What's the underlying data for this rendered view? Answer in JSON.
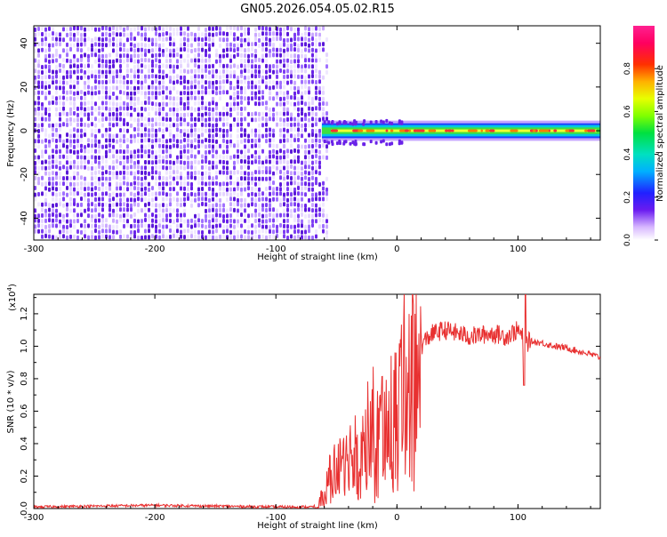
{
  "title": "GN05.2026.054.05.02.R15",
  "colors": {
    "signal_line": "#e83030",
    "noise_purple": "#7a22e6",
    "axis": "#000000",
    "background": "#ffffff"
  },
  "chart_data": [
    {
      "type": "heatmap",
      "title": "GN05.2026.054.05.02.R15",
      "xlabel": "Height of straight line (km)",
      "ylabel": "Frequency (Hz)",
      "xlim": [
        -300,
        168
      ],
      "ylim": [
        -50,
        48
      ],
      "x_ticks": [
        -300,
        -200,
        -100,
        0,
        100
      ],
      "x_tick_labels": [
        "-300",
        "-200",
        "-100",
        "0",
        "100"
      ],
      "y_ticks": [
        -40,
        -20,
        0,
        20,
        40
      ],
      "y_tick_labels": [
        "-40",
        "-20",
        "0",
        "20",
        "40"
      ],
      "noise_region_x": [
        -300,
        -60
      ],
      "signal_band": {
        "x": [
          -62,
          168
        ],
        "center_hz": 0,
        "half_width_hz": 3
      },
      "colorbar": {
        "label": "Normalized spectral amplitude",
        "range": [
          0,
          1
        ],
        "ticks": [
          0.0,
          0.2,
          0.4,
          0.6,
          0.8
        ],
        "tick_labels": [
          "0.0",
          "0.2",
          "0.4",
          "0.6",
          "0.8"
        ]
      }
    },
    {
      "type": "line",
      "xlabel": "Height of straight line (km)",
      "ylabel": "SNR (10 * v/v)",
      "scale_label": "(x10",
      "scale_exponent": "4",
      "scale_suffix": ")",
      "xlim": [
        -300,
        168
      ],
      "ylim": [
        0,
        1.32
      ],
      "x_ticks": [
        -300,
        -200,
        -100,
        0,
        100
      ],
      "x_tick_labels": [
        "-300",
        "-200",
        "-100",
        "0",
        "100"
      ],
      "y_ticks": [
        0.0,
        0.2,
        0.4,
        0.6,
        0.8,
        1.0,
        1.2
      ],
      "y_tick_labels": [
        "0.0",
        "0.2",
        "0.4",
        "0.6",
        "0.8",
        "1.0",
        "1.2"
      ],
      "series": [
        {
          "name": "SNR",
          "x": [
            -300,
            -250,
            -200,
            -150,
            -100,
            -70,
            -65,
            -60,
            -55,
            -50,
            -45,
            -40,
            -35,
            -30,
            -25,
            -20,
            -15,
            -10,
            -5,
            0,
            5,
            10,
            15,
            20,
            25,
            30,
            40,
            50,
            60,
            70,
            80,
            90,
            100,
            104,
            105,
            106,
            107,
            110,
            120,
            130,
            140,
            150,
            160,
            168
          ],
          "y": [
            0.01,
            0.015,
            0.02,
            0.015,
            0.01,
            0.01,
            0.02,
            0.06,
            0.22,
            0.28,
            0.24,
            0.33,
            0.42,
            0.38,
            0.46,
            0.55,
            0.5,
            0.62,
            0.6,
            0.68,
            0.82,
            0.9,
            0.95,
            1.0,
            1.05,
            1.08,
            1.1,
            1.08,
            1.06,
            1.07,
            1.08,
            1.06,
            1.1,
            1.05,
            0.76,
            1.28,
            1.02,
            1.03,
            1.02,
            1.0,
            0.99,
            0.97,
            0.95,
            0.93
          ]
        }
      ]
    }
  ]
}
